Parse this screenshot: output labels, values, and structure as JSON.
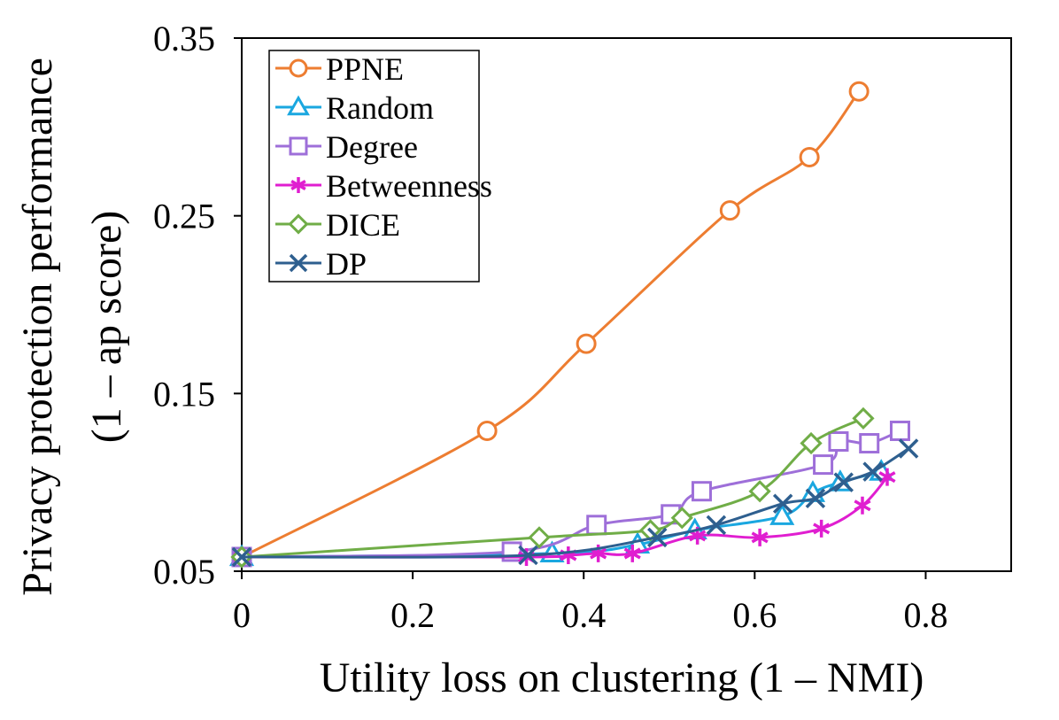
{
  "chart_data": {
    "type": "line",
    "xlabel": "Utility loss on clustering (1 – NMI)",
    "ylabel_line1": "Privacy protection performance",
    "ylabel_line2": "(1 – ap score)",
    "xlim": [
      0,
      0.9
    ],
    "ylim": [
      0.05,
      0.35
    ],
    "xticks": [
      0,
      0.2,
      0.4,
      0.6,
      0.8
    ],
    "xtick_labels": [
      "0",
      "0.2",
      "0.4",
      "0.6",
      "0.8"
    ],
    "yticks": [
      0.05,
      0.15,
      0.25,
      0.35
    ],
    "ytick_labels": [
      "0.05",
      "0.15",
      "0.25",
      "0.35"
    ],
    "legend_position": "top-left",
    "series": [
      {
        "name": "PPNE",
        "color": "#ed7d31",
        "marker": "circle",
        "x": [
          0.0,
          0.287,
          0.403,
          0.571,
          0.664,
          0.722
        ],
        "y": [
          0.058,
          0.129,
          0.178,
          0.253,
          0.283,
          0.32
        ]
      },
      {
        "name": "Random",
        "color": "#1aa7e0",
        "marker": "triangle",
        "x": [
          0.0,
          0.363,
          0.463,
          0.53,
          0.632,
          0.668,
          0.7,
          0.748
        ],
        "y": [
          0.058,
          0.06,
          0.065,
          0.073,
          0.081,
          0.094,
          0.1,
          0.106
        ]
      },
      {
        "name": "Degree",
        "color": "#9e6fd9",
        "marker": "square",
        "x": [
          0.0,
          0.316,
          0.415,
          0.502,
          0.538,
          0.68,
          0.698,
          0.734,
          0.77
        ],
        "y": [
          0.058,
          0.061,
          0.076,
          0.082,
          0.095,
          0.11,
          0.123,
          0.122,
          0.129
        ]
      },
      {
        "name": "Betweenness",
        "color": "#e01ed0",
        "marker": "asterisk",
        "x": [
          0.0,
          0.333,
          0.382,
          0.417,
          0.457,
          0.533,
          0.606,
          0.678,
          0.726,
          0.755
        ],
        "y": [
          0.058,
          0.058,
          0.059,
          0.06,
          0.06,
          0.07,
          0.069,
          0.074,
          0.087,
          0.103
        ]
      },
      {
        "name": "DICE",
        "color": "#70ad47",
        "marker": "diamond",
        "x": [
          0.0,
          0.348,
          0.478,
          0.515,
          0.606,
          0.666,
          0.727
        ],
        "y": [
          0.058,
          0.069,
          0.073,
          0.08,
          0.095,
          0.122,
          0.136
        ]
      },
      {
        "name": "DP",
        "color": "#2e5f8f",
        "marker": "x",
        "x": [
          0.0,
          0.335,
          0.486,
          0.555,
          0.633,
          0.671,
          0.704,
          0.738,
          0.78
        ],
        "y": [
          0.058,
          0.059,
          0.069,
          0.076,
          0.088,
          0.091,
          0.1,
          0.106,
          0.119
        ]
      }
    ]
  }
}
